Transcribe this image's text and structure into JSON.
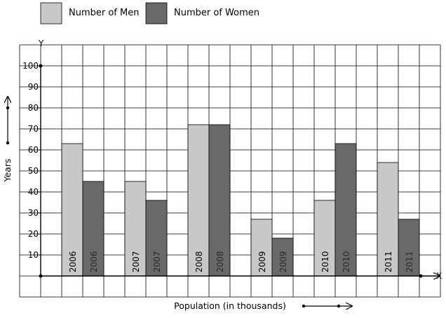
{
  "chart_data": {
    "type": "bar",
    "title": "",
    "xlabel": "Population (in thousands)",
    "ylabel": "Years",
    "x_axis_letter": "X",
    "y_axis_letter": "Y",
    "categories": [
      "2006",
      "2007",
      "2008",
      "2009",
      "2010",
      "2011"
    ],
    "series": [
      {
        "name": "Number of Men",
        "color": "#c8c8c8",
        "values": [
          63,
          45,
          72,
          27,
          36,
          54
        ]
      },
      {
        "name": "Number of Women",
        "color": "#696969",
        "values": [
          45,
          36,
          72,
          18,
          63,
          27
        ]
      }
    ],
    "yticks": [
      "10",
      "20",
      "30",
      "40",
      "50",
      "60",
      "70",
      "80",
      "90",
      "100"
    ],
    "ylim": [
      0,
      100
    ],
    "grid": true,
    "legend_position": "top-left"
  }
}
